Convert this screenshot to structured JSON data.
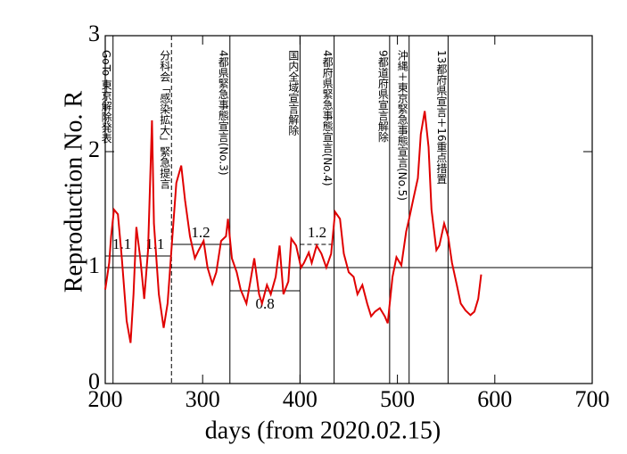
{
  "chart_data": {
    "type": "line",
    "ylabel": "Reproduction No.  R",
    "xlabel": "days   (from 2020.02.15)",
    "xlim": [
      200,
      700
    ],
    "xticks": [
      200,
      300,
      400,
      500,
      600,
      700
    ],
    "ylim": [
      0,
      3
    ],
    "yticks": [
      0,
      1,
      2,
      3
    ],
    "baseline": 1,
    "series": [
      {
        "color": "#e00000",
        "x": [
          200,
          204,
          206,
          209,
          213,
          217,
          222,
          226,
          229,
          232,
          236,
          240,
          244,
          248,
          250,
          255,
          260,
          264,
          269,
          273,
          278,
          282,
          287,
          292,
          296,
          301,
          305,
          310,
          314,
          319,
          324,
          326,
          330,
          335,
          339,
          345,
          349,
          353,
          358,
          361,
          366,
          370,
          375,
          379,
          383,
          388,
          391,
          396,
          401,
          404,
          409,
          412,
          417,
          422,
          427,
          432,
          436,
          441,
          445,
          450,
          455,
          459,
          464,
          469,
          473,
          477,
          482,
          487,
          490,
          495,
          499,
          504,
          509,
          512,
          516,
          521,
          524,
          528,
          532,
          535,
          540,
          543,
          548,
          552,
          556,
          561,
          565,
          570,
          575,
          579,
          583,
          586
        ],
        "values": [
          0.81,
          1.04,
          1.27,
          1.5,
          1.46,
          1.08,
          0.54,
          0.35,
          0.77,
          1.35,
          1.08,
          0.73,
          1.15,
          2.27,
          1.38,
          0.77,
          0.48,
          0.69,
          1.27,
          1.73,
          1.88,
          1.58,
          1.27,
          1.08,
          1.15,
          1.23,
          1.0,
          0.86,
          0.96,
          1.23,
          1.27,
          1.42,
          1.08,
          0.96,
          0.81,
          0.69,
          0.88,
          1.08,
          0.77,
          0.69,
          0.85,
          0.77,
          0.92,
          1.19,
          0.77,
          0.88,
          1.25,
          1.19,
          1.0,
          1.04,
          1.13,
          1.04,
          1.19,
          1.12,
          1.0,
          1.12,
          1.48,
          1.42,
          1.12,
          0.96,
          0.92,
          0.77,
          0.85,
          0.69,
          0.58,
          0.62,
          0.65,
          0.58,
          0.52,
          0.92,
          1.09,
          1.02,
          1.31,
          1.42,
          1.58,
          1.77,
          2.15,
          2.35,
          2.04,
          1.5,
          1.15,
          1.19,
          1.38,
          1.27,
          1.04,
          0.85,
          0.69,
          0.63,
          0.59,
          0.62,
          0.73,
          0.94
        ]
      }
    ],
    "events": [
      {
        "x": 208,
        "label": "GoTo 東京解除発表"
      },
      {
        "x": 268,
        "label": "分科会「感染拡大」緊急提言",
        "dashed": true
      },
      {
        "x": 328,
        "label": "4都県緊急事態宣言(No.3)"
      },
      {
        "x": 400,
        "label": "国内全域宣言解除"
      },
      {
        "x": 435,
        "label": "4都府県緊急事態宣言(No.4)"
      },
      {
        "x": 492,
        "label": "9都道府県宣言解除"
      },
      {
        "x": 512,
        "label": "沖縄＋東京緊急事態宣言(No.5)"
      },
      {
        "x": 552,
        "label": "13都府県宣言＋16重点措置"
      }
    ],
    "levels": [
      {
        "value": 1.1,
        "from": 200,
        "to": 234,
        "label": "1.1"
      },
      {
        "value": 1.1,
        "from": 234,
        "to": 268,
        "label": "1.1"
      },
      {
        "value": 1.2,
        "from": 268,
        "to": 328,
        "label": "1.2"
      },
      {
        "value": 0.8,
        "from": 328,
        "to": 400,
        "label": "0.8",
        "below": true
      },
      {
        "value": 1.2,
        "from": 400,
        "to": 435,
        "label": "1.2",
        "dashed": true
      }
    ]
  }
}
